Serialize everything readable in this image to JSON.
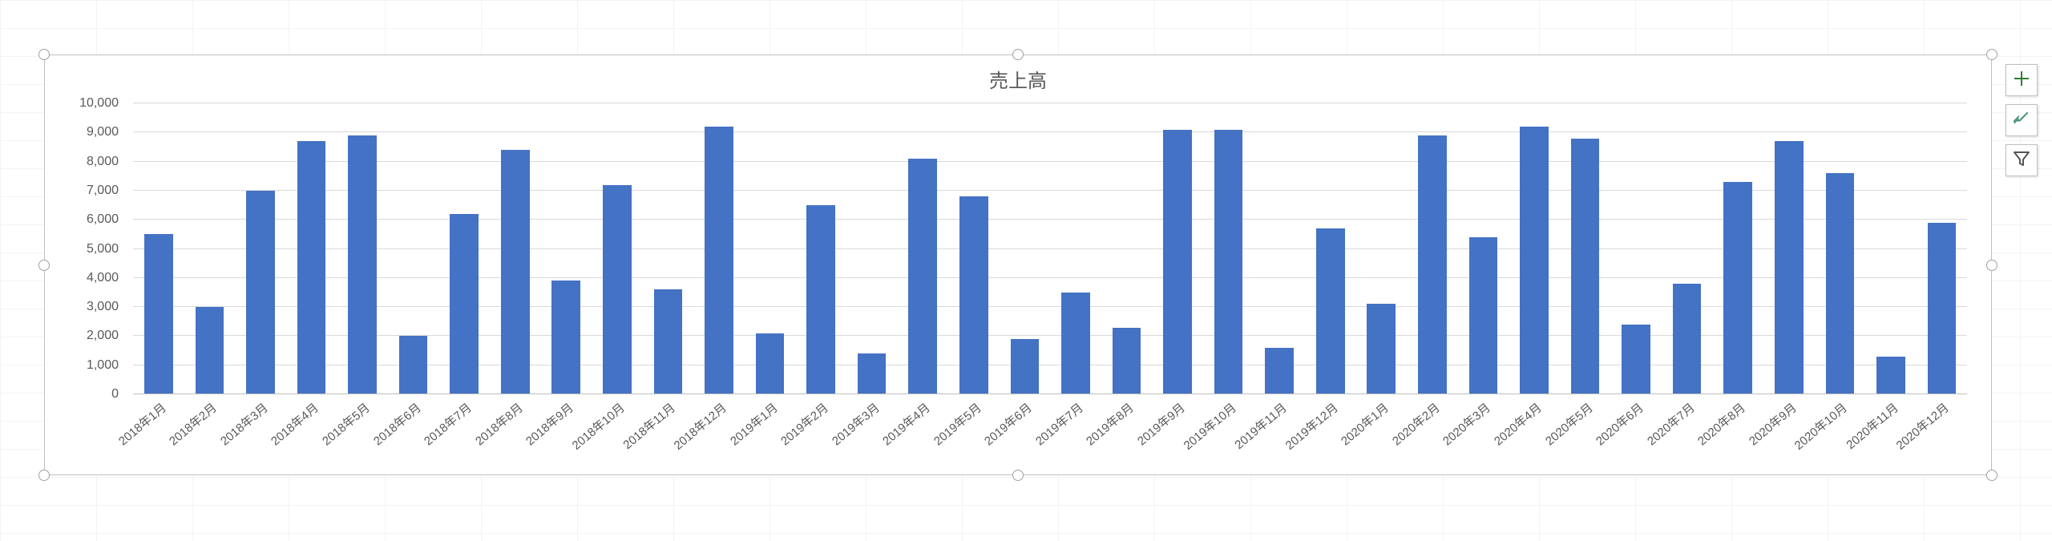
{
  "chart": {
    "type": "bar",
    "title": "売上高",
    "title_fontsize": 24,
    "title_color": "#595959",
    "background_color": "#ffffff",
    "bar_color": "#4472c4",
    "grid_color": "#d9d9d9",
    "axis_label_color": "#595959",
    "axis_label_fontsize": 16,
    "bar_width_ratio": 0.56,
    "y": {
      "min": 0,
      "max": 10000,
      "step": 1000,
      "ticks": [
        "0",
        "1,000",
        "2,000",
        "3,000",
        "4,000",
        "5,000",
        "6,000",
        "7,000",
        "8,000",
        "9,000",
        "10,000"
      ]
    },
    "categories": [
      "2018年1月",
      "2018年2月",
      "2018年3月",
      "2018年4月",
      "2018年5月",
      "2018年6月",
      "2018年7月",
      "2018年8月",
      "2018年9月",
      "2018年10月",
      "2018年11月",
      "2018年12月",
      "2019年1月",
      "2019年2月",
      "2019年3月",
      "2019年4月",
      "2019年5月",
      "2019年6月",
      "2019年7月",
      "2019年8月",
      "2019年9月",
      "2019年10月",
      "2019年11月",
      "2019年12月",
      "2020年1月",
      "2020年2月",
      "2020年3月",
      "2020年4月",
      "2020年5月",
      "2020年6月",
      "2020年7月",
      "2020年8月",
      "2020年9月",
      "2020年10月",
      "2020年11月",
      "2020年12月"
    ],
    "values": [
      5500,
      3000,
      7000,
      8700,
      8900,
      2000,
      6200,
      8400,
      3900,
      7200,
      3600,
      9200,
      2100,
      6500,
      1400,
      8100,
      6800,
      1900,
      3500,
      2300,
      9100,
      9100,
      1600,
      5700,
      3100,
      8900,
      5400,
      9200,
      8800,
      2400,
      3800,
      7300,
      8700,
      7600,
      1300,
      5900
    ]
  },
  "tools": {
    "plus": "chart-elements",
    "brush": "chart-styles",
    "funnel": "chart-filters"
  }
}
